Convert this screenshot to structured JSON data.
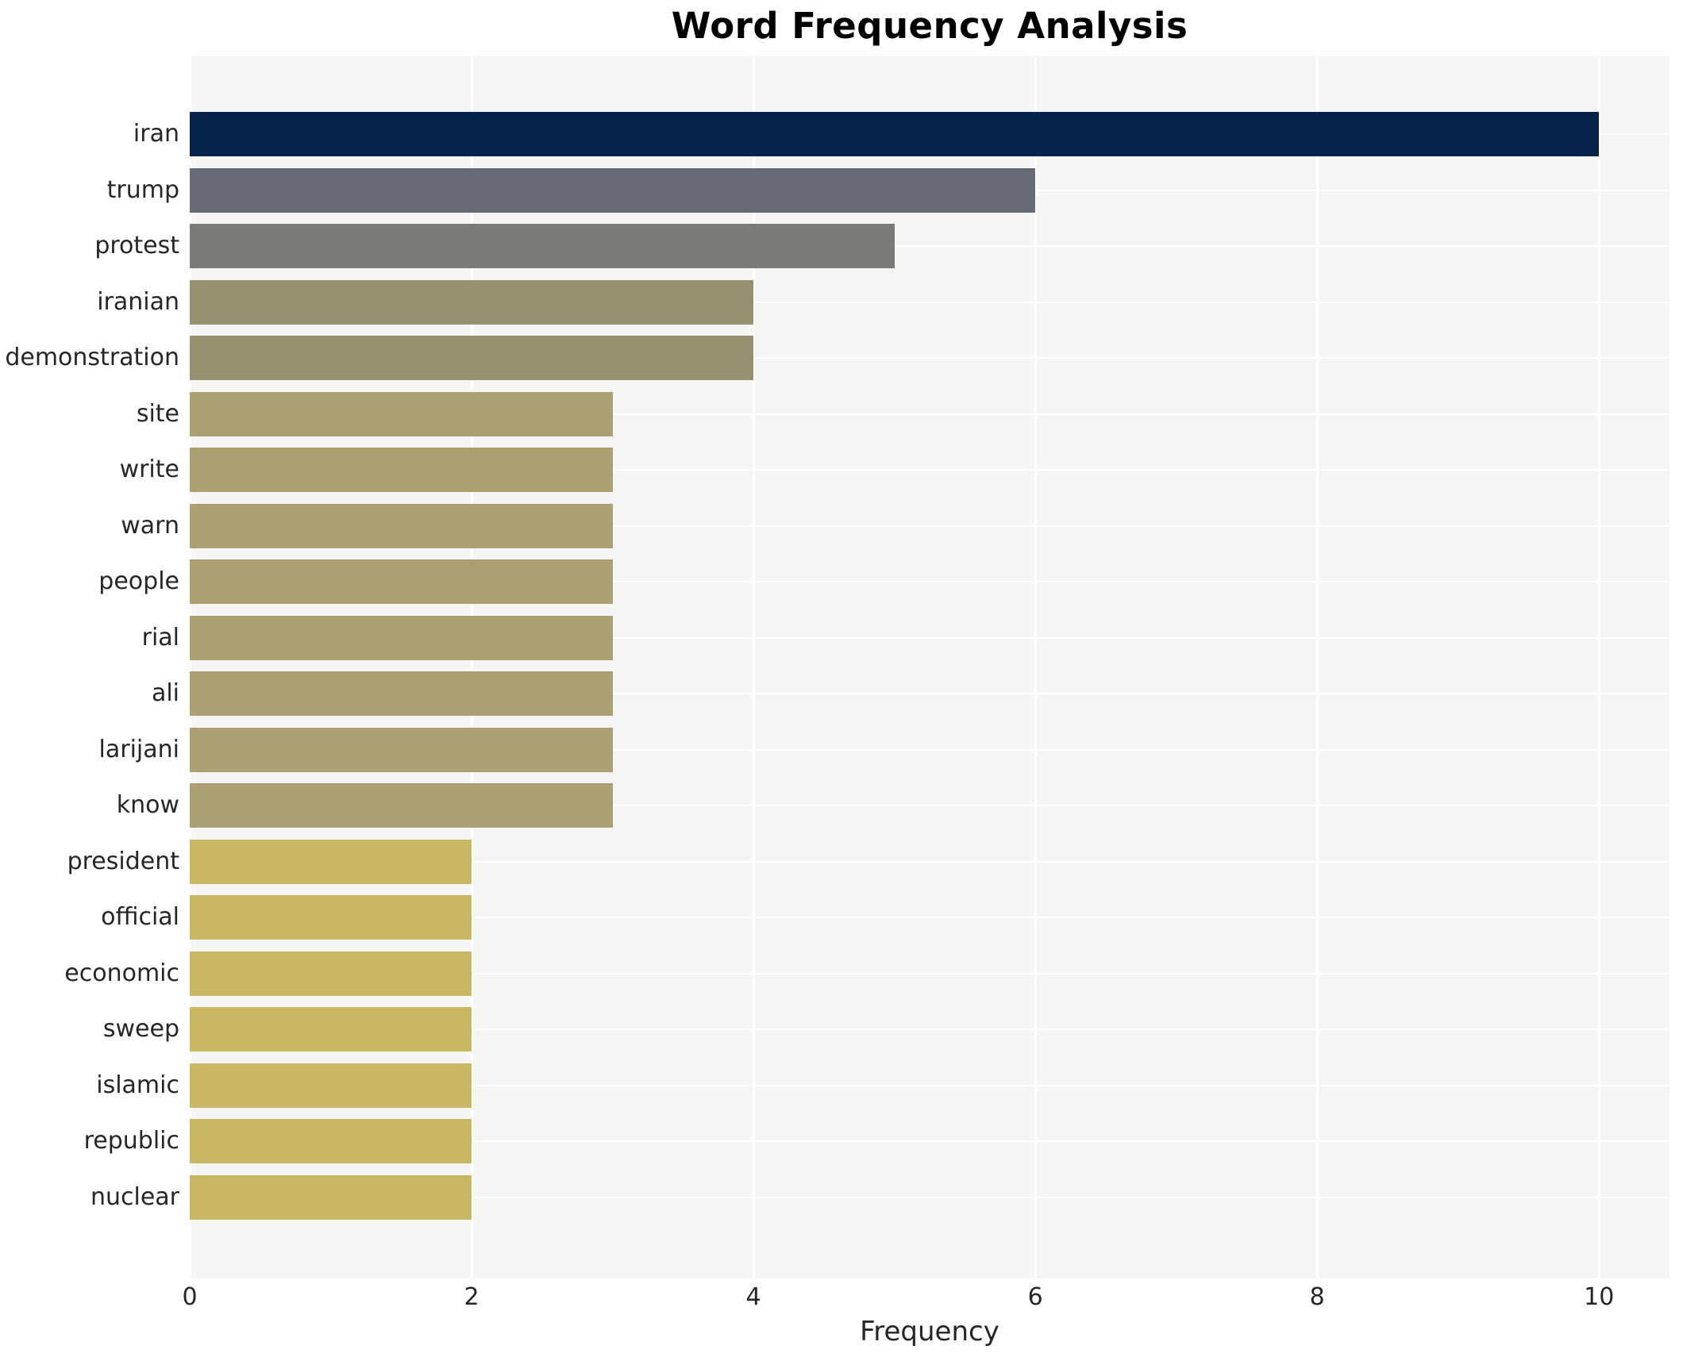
{
  "chart_data": {
    "type": "bar",
    "orientation": "horizontal",
    "title": "Word Frequency Analysis",
    "xlabel": "Frequency",
    "ylabel": "",
    "categories": [
      "iran",
      "trump",
      "protest",
      "iranian",
      "demonstration",
      "site",
      "write",
      "warn",
      "people",
      "rial",
      "ali",
      "larijani",
      "know",
      "president",
      "official",
      "economic",
      "sweep",
      "islamic",
      "republic",
      "nuclear"
    ],
    "values": [
      10,
      6,
      5,
      4,
      4,
      3,
      3,
      3,
      3,
      3,
      3,
      3,
      3,
      2,
      2,
      2,
      2,
      2,
      2,
      2
    ],
    "bar_colors": [
      "#08234b",
      "#666a75",
      "#7b7b76",
      "#949070",
      "#949070",
      "#aca072",
      "#aca072",
      "#aca072",
      "#aca072",
      "#aca072",
      "#aca072",
      "#aca072",
      "#aca072",
      "#cab864",
      "#cab864",
      "#cab864",
      "#cab864",
      "#cab864",
      "#cab864",
      "#cab864"
    ],
    "xticks": [
      0,
      2,
      4,
      6,
      8,
      10
    ],
    "xlim": [
      0,
      10.5
    ],
    "grid": true,
    "legend": "none",
    "plot_background": "#f5f5f4",
    "grid_color": "#ffffff",
    "text_color": "#262626",
    "title_color": "#000000"
  }
}
